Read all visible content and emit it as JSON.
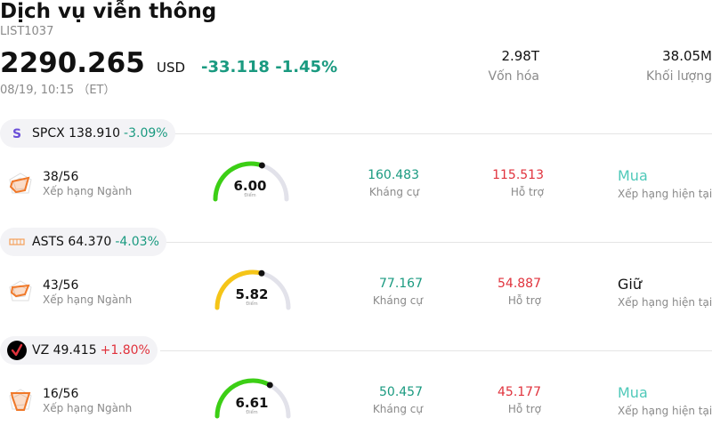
{
  "header": {
    "title": "Dịch vụ viễn thông",
    "code": "LIST1037",
    "price": "2290.265",
    "currency": "USD",
    "change": "-33.118 -1.45%",
    "datetime": "08/19, 10:15 （ET）",
    "market_cap_value": "2.98T",
    "market_cap_label": "Vốn hóa",
    "volume_value": "38.05M",
    "volume_label": "Khối lượng"
  },
  "stocks": [
    {
      "symbol_price": "SPCX 138.910",
      "change": "-3.09%",
      "direction": "down",
      "logo_icon": "spcx-s-logo-icon",
      "rank": "38/56",
      "rank_label": "Xếp hạng Ngành",
      "score": "6.00",
      "score_label": "Điểm",
      "score_fraction": 0.6,
      "gauge_color": "#3ccf15",
      "resistance": "160.483",
      "resistance_label": "Kháng cự",
      "support": "115.513",
      "support_label": "Hỗ trợ",
      "rating": "Mua",
      "rating_type": "buy",
      "rating_label": "Xếp hạng hiện tại"
    },
    {
      "symbol_price": "ASTS 64.370",
      "change": "-4.03%",
      "direction": "down",
      "logo_icon": "asts-logo-icon",
      "rank": "43/56",
      "rank_label": "Xếp hạng Ngành",
      "score": "5.82",
      "score_label": "Điểm",
      "score_fraction": 0.58,
      "gauge_color": "#f5c518",
      "resistance": "77.167",
      "resistance_label": "Kháng cự",
      "support": "54.887",
      "support_label": "Hỗ trợ",
      "rating": "Giữ",
      "rating_type": "hold",
      "rating_label": "Xếp hạng hiện tại"
    },
    {
      "symbol_price": "VZ 49.415",
      "change": "+1.80%",
      "direction": "up",
      "logo_icon": "verizon-check-logo-icon",
      "rank": "16/56",
      "rank_label": "Xếp hạng Ngành",
      "score": "6.61",
      "score_label": "Điểm",
      "score_fraction": 0.66,
      "gauge_color": "#3ccf15",
      "resistance": "50.457",
      "resistance_label": "Kháng cự",
      "support": "45.177",
      "support_label": "Hỗ trợ",
      "rating": "Mua",
      "rating_type": "buy",
      "rating_label": "Xếp hạng hiện tại"
    }
  ],
  "colors": {
    "negative_change": "#1a9a80",
    "positive_change": "#e0323c",
    "buy_rating": "#4fc9b9",
    "gauge_track": "#e2e2ea"
  }
}
